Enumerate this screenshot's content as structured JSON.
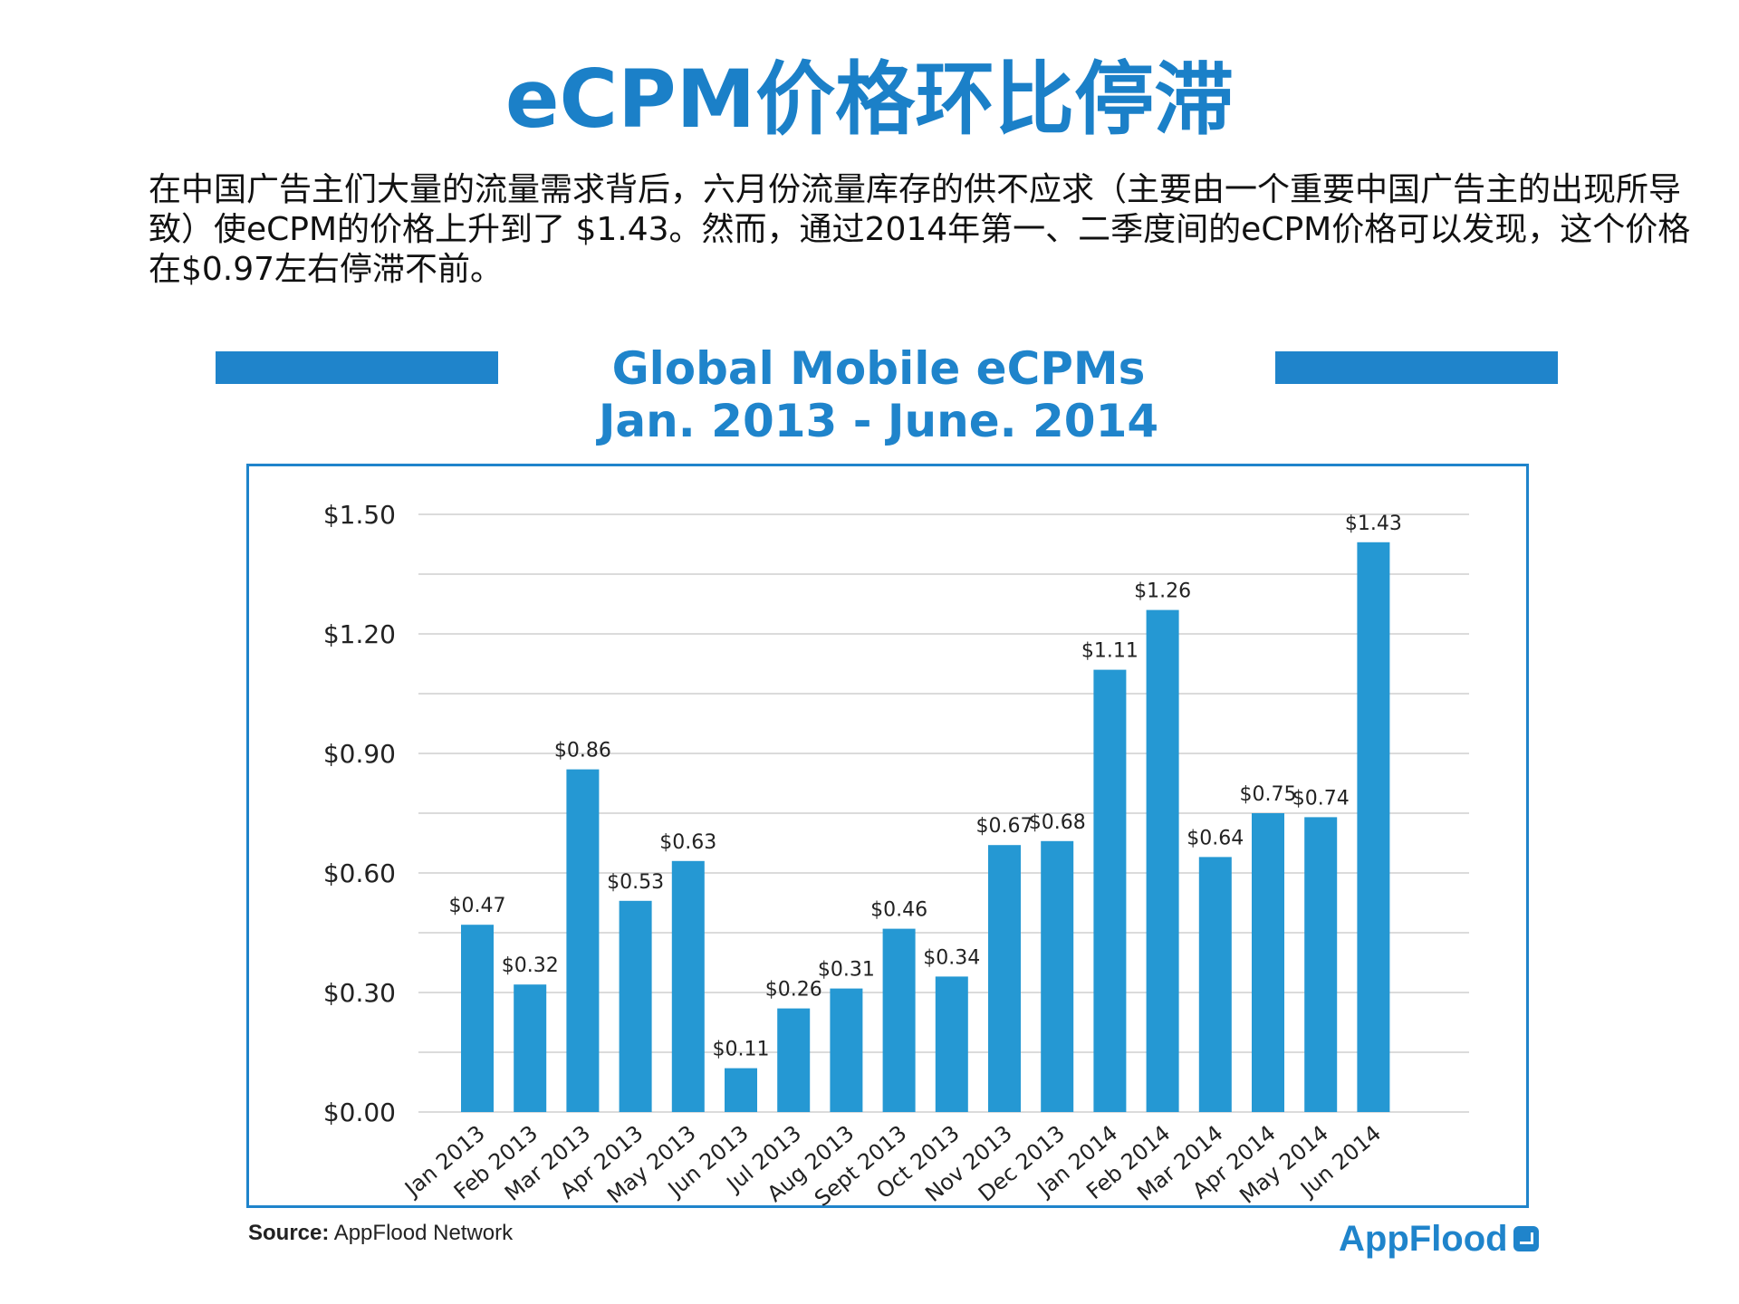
{
  "page": {
    "title": "eCPM价格环比停滞",
    "intro": "在中国广告主们大量的流量需求背后，六月份流量库存的供不应求（主要由一个重要中国广告主的出现所导致）使eCPM的价格上升到了 $1.43。然而，通过2014年第一、二季度间的eCPM价格可以发现，这个价格在$0.97左右停滞不前。"
  },
  "colors": {
    "accent": "#1f84cb",
    "bar": "#2598d3",
    "grid": "#cfcfcf"
  },
  "chart_data": {
    "type": "bar",
    "title_line1": "Global Mobile eCPMs",
    "title_line2": "Jan. 2013 - June. 2014",
    "categories": [
      "Jan 2013",
      "Feb 2013",
      "Mar 2013",
      "Apr 2013",
      "May 2013",
      "Jun 2013",
      "Jul 2013",
      "Aug 2013",
      "Sept 2013",
      "Oct 2013",
      "Nov 2013",
      "Dec 2013",
      "Jan 2014",
      "Feb 2014",
      "Mar 2014",
      "Apr 2014",
      "May 2014",
      "Jun 2014"
    ],
    "values": [
      0.47,
      0.32,
      0.86,
      0.53,
      0.63,
      0.11,
      0.26,
      0.31,
      0.46,
      0.34,
      0.67,
      0.68,
      1.11,
      1.26,
      0.64,
      0.75,
      0.74,
      1.43
    ],
    "value_labels": [
      "$0.47",
      "$0.32",
      "$0.86",
      "$0.53",
      "$0.63",
      "$0.11",
      "$0.26",
      "$0.31",
      "$0.46",
      "$0.34",
      "$0.67",
      "$0.68",
      "$1.11",
      "$1.26",
      "$0.64",
      "$0.75",
      "$0.74",
      "$1.43"
    ],
    "yticks": [
      0,
      0.3,
      0.6,
      0.9,
      1.2,
      1.5
    ],
    "ytick_labels": [
      "$0.00",
      "$0.30",
      "$0.60",
      "$0.90",
      "$1.20",
      "$1.50"
    ],
    "ylim": [
      0,
      1.5
    ],
    "grid": true,
    "xlabel": "",
    "ylabel": ""
  },
  "footer": {
    "source_label": "Source:",
    "source_text": " AppFlood Network",
    "logo_text": "AppFlood"
  }
}
